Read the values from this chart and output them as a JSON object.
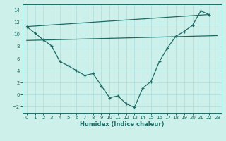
{
  "background_color": "#cef0ea",
  "grid_color": "#aaddda",
  "line_color": "#1e6b65",
  "xlabel": "Humidex (Indice chaleur)",
  "ylim": [
    -3,
    15
  ],
  "xlim": [
    -0.5,
    23.5
  ],
  "yticks": [
    -2,
    0,
    2,
    4,
    6,
    8,
    10,
    12,
    14
  ],
  "xticks": [
    0,
    1,
    2,
    3,
    4,
    5,
    6,
    7,
    8,
    9,
    10,
    11,
    12,
    13,
    14,
    15,
    16,
    17,
    18,
    19,
    20,
    21,
    22,
    23
  ],
  "curve_x": [
    0,
    1,
    2,
    3,
    4,
    5,
    6,
    7,
    8,
    9,
    10,
    11,
    12,
    13,
    14,
    15,
    16,
    17,
    18,
    19,
    20,
    21,
    22
  ],
  "curve_y": [
    11.3,
    10.2,
    9.1,
    8.1,
    5.5,
    4.8,
    4.0,
    3.2,
    3.5,
    1.5,
    -0.5,
    -0.2,
    -1.5,
    -2.1,
    1.1,
    2.2,
    5.5,
    7.8,
    9.7,
    10.5,
    11.5,
    13.9,
    13.3
  ],
  "flat_line_x": [
    0,
    23
  ],
  "flat_line_y": [
    9.0,
    9.8
  ],
  "diag_line_x": [
    0,
    22
  ],
  "diag_line_y": [
    11.3,
    13.3
  ],
  "xlabel_fontsize": 6,
  "tick_fontsize": 5
}
